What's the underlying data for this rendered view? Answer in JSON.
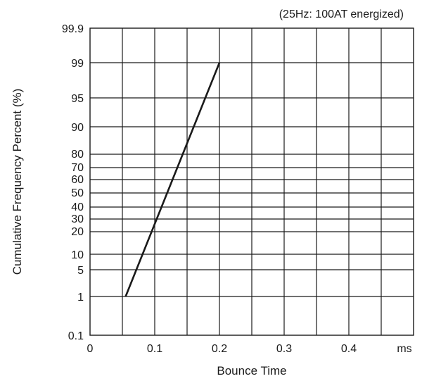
{
  "chart_data": {
    "type": "line",
    "title": "",
    "subtitle": "(25Hz: 100AT energized)",
    "xlabel": "Bounce Time",
    "ylabel": "Cumulative Frequency Percent (%)",
    "x_unit": "ms",
    "xlim": [
      0,
      0.5
    ],
    "ylim": [
      0.1,
      99.9
    ],
    "y_scale": "probability",
    "grid": true,
    "x_ticks": [
      0,
      0.1,
      0.2,
      0.3,
      0.4
    ],
    "x_tick_labels": [
      "0",
      "0.1",
      "0.2",
      "0.3",
      "0.4"
    ],
    "y_ticks": [
      0.1,
      1,
      5,
      10,
      20,
      30,
      40,
      50,
      60,
      70,
      80,
      90,
      95,
      99,
      99.9
    ],
    "y_tick_labels": [
      "0.1",
      "1",
      "5",
      "10",
      "20",
      "30",
      "40",
      "50",
      "60",
      "70",
      "80",
      "90",
      "95",
      "99",
      "99.9"
    ],
    "series": [
      {
        "x": [
          0.055,
          0.2
        ],
        "y": [
          1,
          99
        ]
      }
    ],
    "colors": {
      "line": "#1a1a1a",
      "grid": "#1a1a1a",
      "text": "#1a1a1a",
      "background": "#ffffff"
    }
  }
}
